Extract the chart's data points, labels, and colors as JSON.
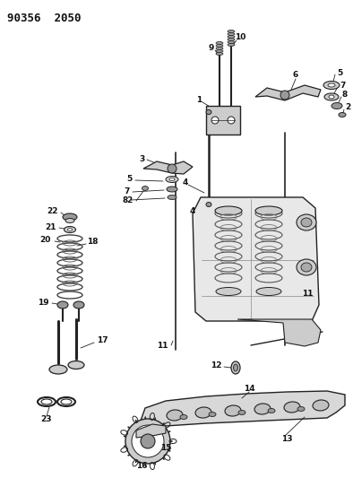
{
  "bg_color": "#ffffff",
  "fig_width": 3.94,
  "fig_height": 5.33,
  "dpi": 100,
  "title": "90356  2050",
  "title_fontsize": 9,
  "edge_color": "#222222",
  "light_gray": "#cccccc",
  "mid_gray": "#999999",
  "dark_gray": "#444444",
  "label_fontsize": 6.5,
  "label_fontweight": "bold"
}
